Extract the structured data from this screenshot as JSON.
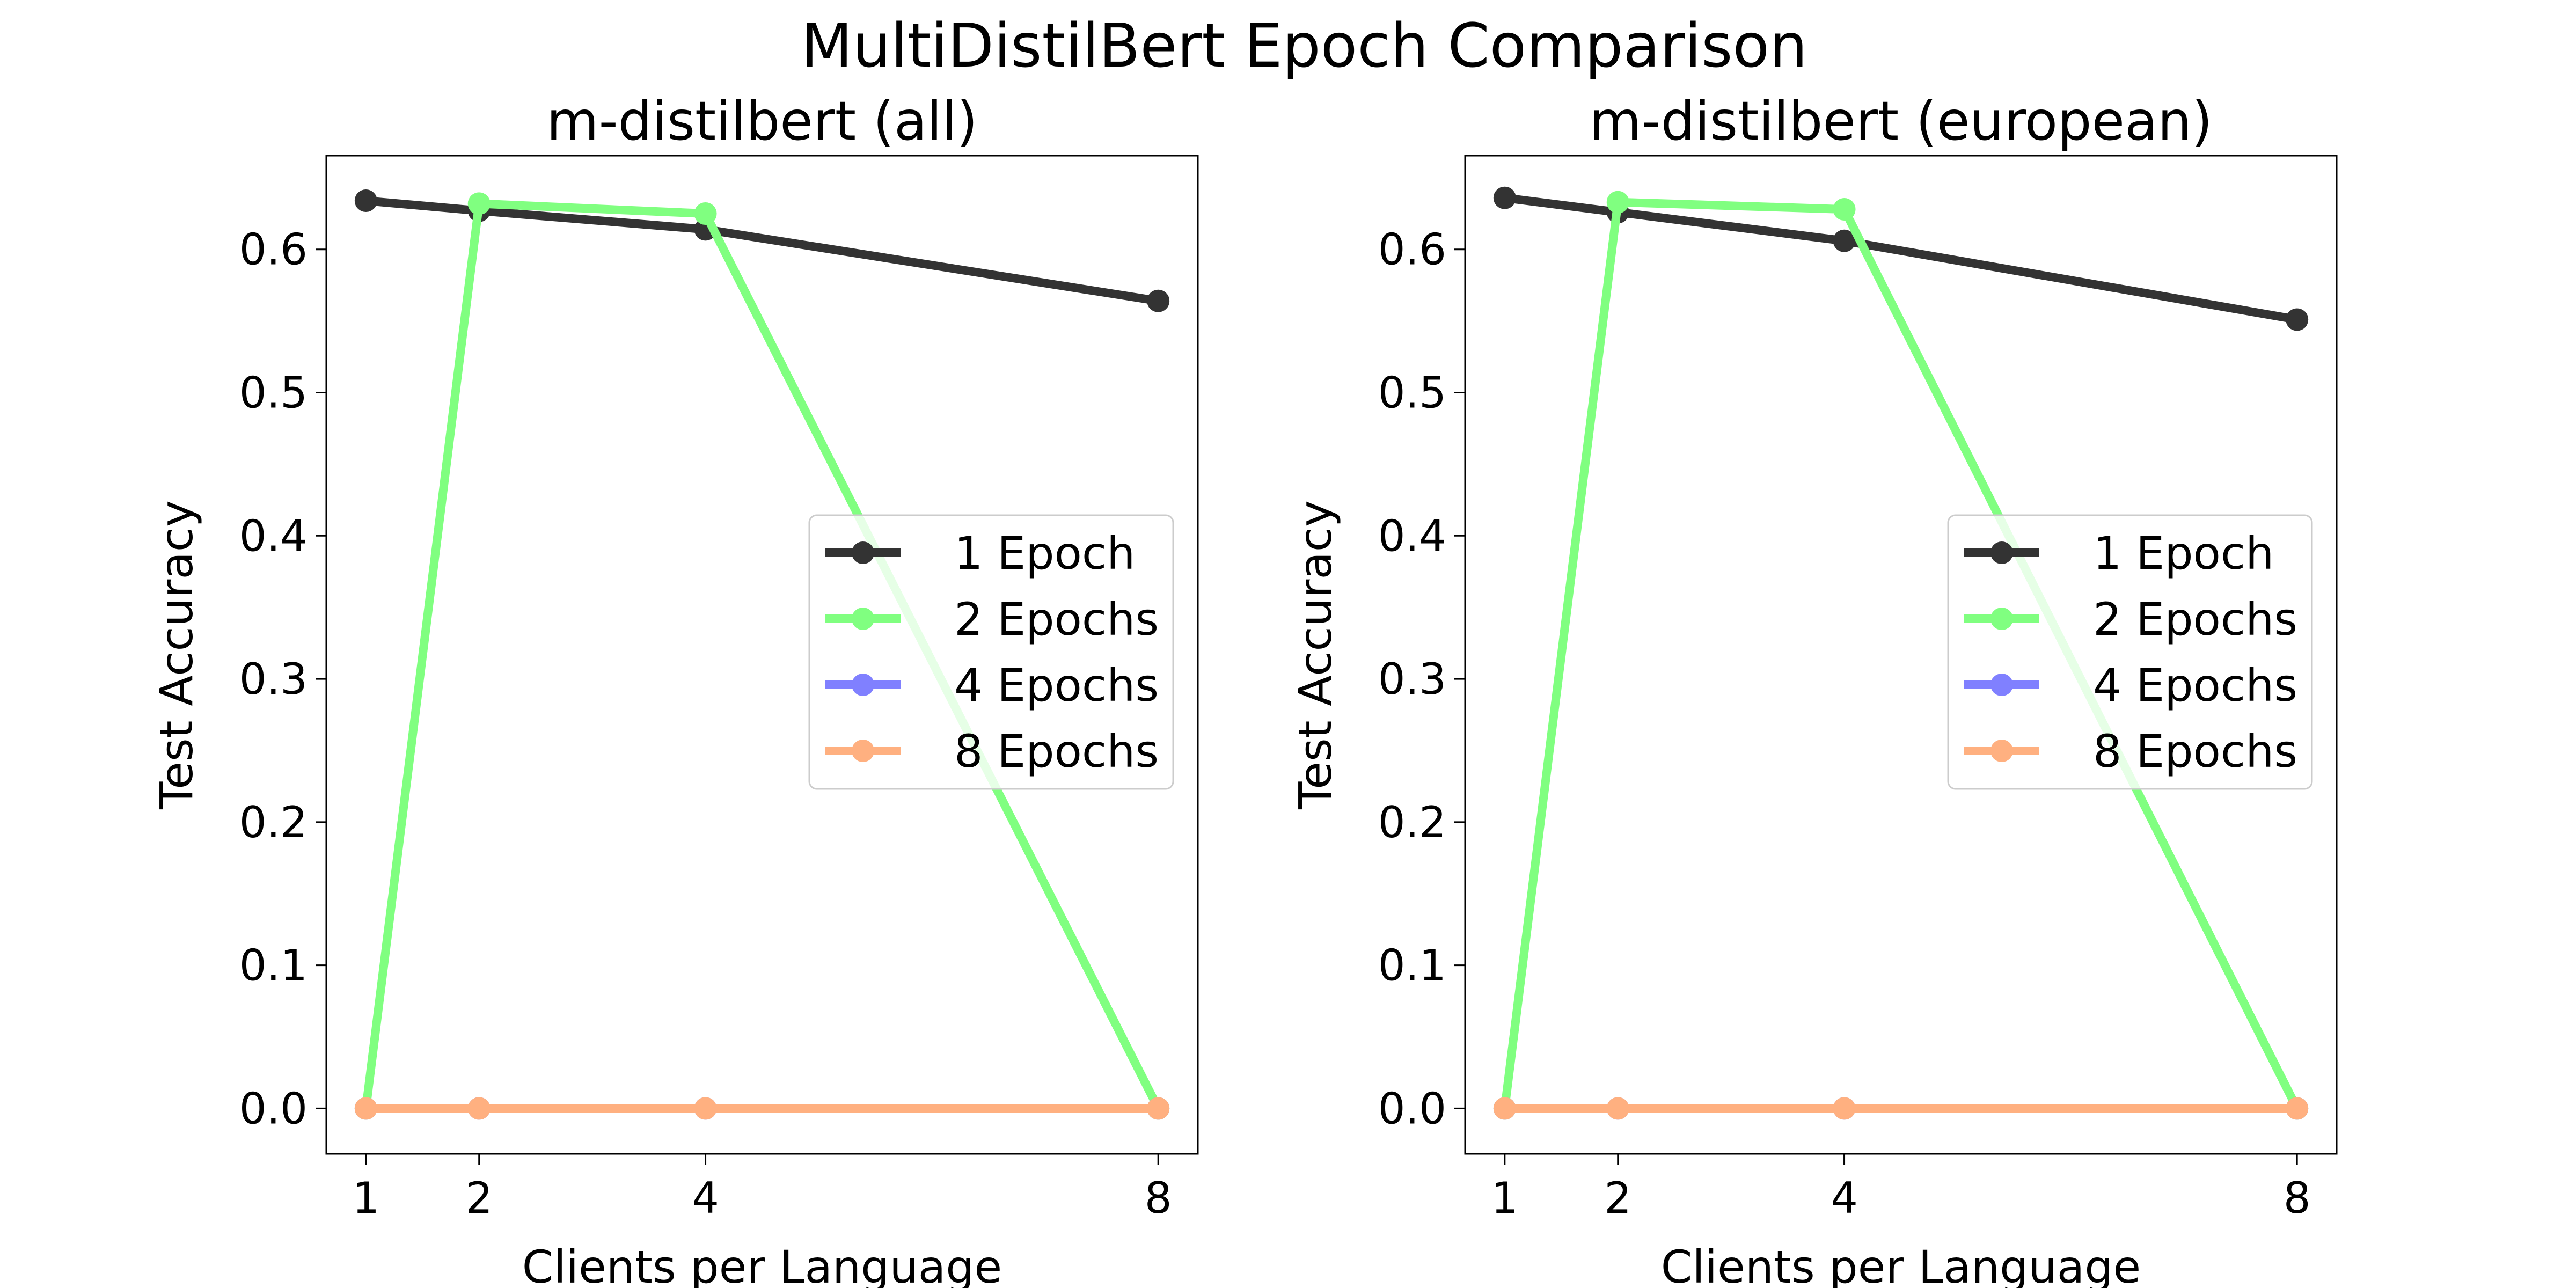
{
  "figure": {
    "suptitle": "MultiDistilBert Epoch Comparison"
  },
  "chart_data": [
    {
      "type": "line",
      "title": "m-distilbert (all)",
      "xlabel": "Clients per Language",
      "ylabel": "Test Accuracy",
      "x": [
        1,
        2,
        4,
        8
      ],
      "xticks": [
        1,
        2,
        4,
        8
      ],
      "xlim": [
        0.65,
        8.35
      ],
      "ylim": [
        -0.0317,
        0.6655
      ],
      "yticks": [
        0.0,
        0.1,
        0.2,
        0.3,
        0.4,
        0.5,
        0.6
      ],
      "ytick_labels": [
        "0.0",
        "0.1",
        "0.2",
        "0.3",
        "0.4",
        "0.5",
        "0.6"
      ],
      "grid": false,
      "legend": "center-right",
      "series": [
        {
          "name": "1 Epoch",
          "color": "#333333",
          "values": [
            0.634,
            0.627,
            0.614,
            0.564
          ]
        },
        {
          "name": "2 Epochs",
          "color": "#80ff80",
          "values": [
            0.0,
            0.632,
            0.625,
            0.0
          ]
        },
        {
          "name": "4 Epochs",
          "color": "#8080ff",
          "values": [
            0.0,
            0.0,
            0.0,
            0.0
          ]
        },
        {
          "name": "8 Epochs",
          "color": "#ffb080",
          "values": [
            0.0,
            0.0,
            0.0,
            0.0
          ]
        }
      ]
    },
    {
      "type": "line",
      "title": "m-distilbert (european)",
      "xlabel": "Clients per Language",
      "ylabel": "Test Accuracy",
      "x": [
        1,
        2,
        4,
        8
      ],
      "xticks": [
        1,
        2,
        4,
        8
      ],
      "xlim": [
        0.65,
        8.35
      ],
      "ylim": [
        -0.0317,
        0.6655
      ],
      "yticks": [
        0.0,
        0.1,
        0.2,
        0.3,
        0.4,
        0.5,
        0.6
      ],
      "ytick_labels": [
        "0.0",
        "0.1",
        "0.2",
        "0.3",
        "0.4",
        "0.5",
        "0.6"
      ],
      "grid": false,
      "legend": "center-right",
      "series": [
        {
          "name": "1 Epoch",
          "color": "#333333",
          "values": [
            0.636,
            0.626,
            0.606,
            0.551
          ]
        },
        {
          "name": "2 Epochs",
          "color": "#80ff80",
          "values": [
            0.0,
            0.633,
            0.628,
            0.0
          ]
        },
        {
          "name": "4 Epochs",
          "color": "#8080ff",
          "values": [
            0.0,
            0.0,
            0.0,
            0.0
          ]
        },
        {
          "name": "8 Epochs",
          "color": "#ffb080",
          "values": [
            0.0,
            0.0,
            0.0,
            0.0
          ]
        }
      ]
    }
  ]
}
